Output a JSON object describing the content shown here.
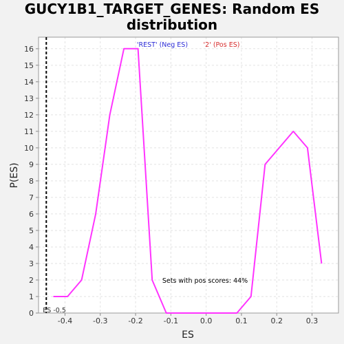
{
  "chart_data": {
    "type": "line",
    "title": "GUCY1B1_TARGET_GENES: Random ES distribution",
    "xlabel": "ES",
    "ylabel": "P(ES)",
    "xlim": [
      -0.475,
      0.375
    ],
    "ylim": [
      0,
      16.7
    ],
    "x_ticks": [
      -0.4,
      -0.3,
      -0.2,
      -0.1,
      0.0,
      0.1,
      0.2,
      0.3
    ],
    "x_tick_labels": [
      "-0.4",
      "-0.3",
      "-0.2",
      "-0.1",
      "0.0",
      "0.1",
      "0.2",
      "0.3"
    ],
    "y_ticks": [
      0,
      1,
      2,
      3,
      4,
      5,
      6,
      7,
      8,
      9,
      10,
      11,
      12,
      13,
      14,
      15,
      16
    ],
    "y_tick_labels": [
      "0",
      "1",
      "2",
      "3",
      "4",
      "5",
      "6",
      "7",
      "8",
      "9",
      "10",
      "11",
      "12",
      "13",
      "14",
      "15",
      "16"
    ],
    "grid": true,
    "series": [
      {
        "color": "#ff33ff",
        "x": [
          -0.433,
          -0.393,
          -0.353,
          -0.313,
          -0.273,
          -0.233,
          -0.193,
          -0.153,
          -0.113,
          -0.073,
          -0.033,
          0.007,
          0.047,
          0.087,
          0.127,
          0.167,
          0.207,
          0.247,
          0.287,
          0.327
        ],
        "y": [
          1,
          1,
          2,
          6,
          12,
          16,
          16,
          2,
          0,
          0,
          0,
          0,
          0,
          0,
          1,
          9,
          10,
          11,
          10,
          3
        ]
      }
    ],
    "vline": {
      "x": -0.453,
      "label": "ES -0.5"
    },
    "legend": [
      {
        "label": "'REST' (Neg ES)",
        "color": "#2b2bd6"
      },
      {
        "label": "'2' (Pos ES)",
        "color": "#d62b2b"
      }
    ],
    "annotation": "Sets with pos scores: 44%"
  }
}
